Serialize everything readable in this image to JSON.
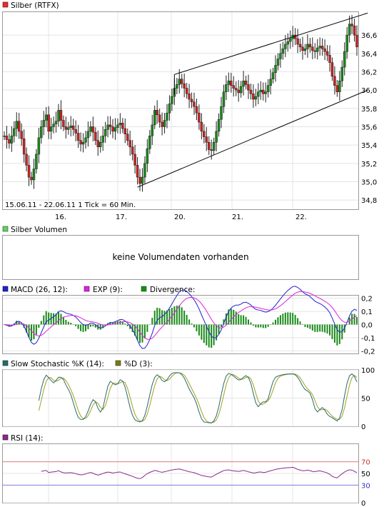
{
  "chart_data": [
    {
      "type": "candlestick",
      "legend": [
        {
          "label": "Silber (RTFX)",
          "color": "#e03030"
        }
      ],
      "period_label": "15.06.11 - 22.06.11   1 Tick = 60 Min.",
      "x_ticks": [
        "16.",
        "17.",
        "20.",
        "21.",
        "22."
      ],
      "y_ticks": [
        "34,8",
        "35,0",
        "35,2",
        "35,4",
        "35,6",
        "35,8",
        "36,0",
        "36,2",
        "36,4",
        "36,6"
      ],
      "ylim": [
        34.7,
        36.85
      ],
      "grid": true,
      "close": [
        35.5,
        35.46,
        35.42,
        35.5,
        35.58,
        35.66,
        35.55,
        35.47,
        35.3,
        35.18,
        35.05,
        35.02,
        35.14,
        35.3,
        35.48,
        35.6,
        35.67,
        35.73,
        35.55,
        35.6,
        35.63,
        35.66,
        35.78,
        35.67,
        35.6,
        35.57,
        35.59,
        35.61,
        35.57,
        35.53,
        35.45,
        35.41,
        35.43,
        35.48,
        35.55,
        35.6,
        35.54,
        35.45,
        35.38,
        35.43,
        35.5,
        35.57,
        35.62,
        35.6,
        35.55,
        35.59,
        35.62,
        35.64,
        35.58,
        35.52,
        35.45,
        35.38,
        35.3,
        35.18,
        35.05,
        34.98,
        35.05,
        35.2,
        35.36,
        35.5,
        35.62,
        35.78,
        35.73,
        35.65,
        35.6,
        35.67,
        35.75,
        35.85,
        35.93,
        36.02,
        36.06,
        36.12,
        36.07,
        36.02,
        35.96,
        35.9,
        35.87,
        35.82,
        35.75,
        35.65,
        35.55,
        35.49,
        35.43,
        35.35,
        35.34,
        35.43,
        35.55,
        35.68,
        35.82,
        35.98,
        36.06,
        36.1,
        36.05,
        36.02,
        36.0,
        35.97,
        36.04,
        36.1,
        36.06,
        36.0,
        35.96,
        35.9,
        35.93,
        35.98,
        36.0,
        35.96,
        35.98,
        36.05,
        36.12,
        36.19,
        36.27,
        36.34,
        36.4,
        36.45,
        36.5,
        36.53,
        36.56,
        36.6,
        36.56,
        36.5,
        36.47,
        36.43,
        36.45,
        36.5,
        36.47,
        36.43,
        36.42,
        36.46,
        36.48,
        36.45,
        36.42,
        36.38,
        36.3,
        36.15,
        36.05,
        35.98,
        36.1,
        36.25,
        36.42,
        36.6,
        36.72,
        36.7,
        36.6,
        36.47
      ],
      "channel_lines": [
        {
          "from": {
            "tick": 54,
            "value": 34.94
          },
          "to": {
            "tick": 141,
            "value": 36.0
          }
        },
        {
          "from": {
            "tick": 69,
            "value": 36.17
          },
          "to": {
            "tick": 141,
            "value": 36.84
          }
        }
      ],
      "series_color": "#1a8a1a",
      "down_color": "#d02020"
    },
    {
      "type": "bar",
      "legend": [
        {
          "label": "Silber Volumen",
          "color": "#70c870"
        }
      ],
      "message": "keine Volumendaten vorhanden"
    },
    {
      "type": "line",
      "legend": [
        {
          "label": "MACD (26, 12):",
          "color": "#2222cc"
        },
        {
          "label": "EXP (9):",
          "color": "#dd22dd"
        },
        {
          "label": "Divergence:",
          "color": "#1a8a1a"
        }
      ],
      "y_ticks": [
        "0,2",
        "0,1",
        "0,0",
        "-0,1",
        "-0,2"
      ],
      "ylim": [
        -0.22,
        0.22
      ]
    },
    {
      "type": "line",
      "legend": [
        {
          "label": "Slow Stochastic %K (14):",
          "color": "#2a6a6a"
        },
        {
          "label": "%D (3):",
          "color": "#7a7a20"
        }
      ],
      "y_ticks": [
        "100",
        "50",
        "0"
      ],
      "ylim": [
        0,
        100
      ]
    },
    {
      "type": "line",
      "legend": [
        {
          "label": "RSI (14):",
          "color": "#8a2a8a"
        }
      ],
      "y_ticks": [
        "70",
        "50",
        "30",
        "0"
      ],
      "ylim": [
        0,
        100
      ],
      "reference_lines": [
        {
          "value": 70,
          "color": "#e08080"
        },
        {
          "value": 30,
          "color": "#8080e0"
        }
      ]
    }
  ]
}
